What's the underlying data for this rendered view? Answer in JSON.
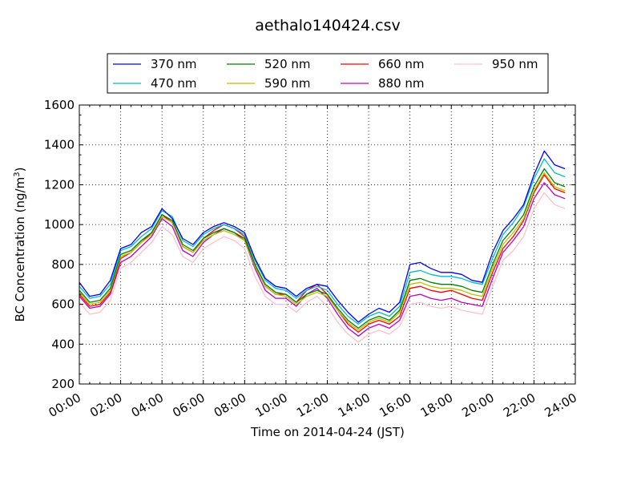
{
  "chart_data": {
    "type": "line",
    "title": "aethalo140424.csv",
    "xlabel": "Time on 2014-04-24 (JST)",
    "ylabel": "BC Concentration (ng/m",
    "ylabel_sup": "3",
    "ylabel_end": ")",
    "ylim": [
      200,
      1600
    ],
    "yticks": [
      200,
      400,
      600,
      800,
      1000,
      1200,
      1400,
      1600
    ],
    "xlim": [
      "00:00",
      "24:00"
    ],
    "xticks": [
      "00:00",
      "02:00",
      "04:00",
      "06:00",
      "08:00",
      "10:00",
      "12:00",
      "14:00",
      "16:00",
      "18:00",
      "20:00",
      "22:00",
      "24:00"
    ],
    "grid": true,
    "legend_position": "top",
    "x": [
      "00:00",
      "00:30",
      "01:00",
      "01:30",
      "02:00",
      "02:30",
      "03:00",
      "03:30",
      "04:00",
      "04:30",
      "05:00",
      "05:30",
      "06:00",
      "06:30",
      "07:00",
      "07:30",
      "08:00",
      "08:30",
      "09:00",
      "09:30",
      "10:00",
      "10:30",
      "11:00",
      "11:30",
      "12:00",
      "12:30",
      "13:00",
      "13:30",
      "14:00",
      "14:30",
      "15:00",
      "15:30",
      "16:00",
      "16:30",
      "17:00",
      "17:30",
      "18:00",
      "18:30",
      "19:00",
      "19:30",
      "20:00",
      "20:30",
      "21:00",
      "21:30",
      "22:00",
      "22:30",
      "23:00",
      "23:30"
    ],
    "series": [
      {
        "name": "370 nm",
        "color": "#0000ff",
        "values": [
          710,
          640,
          650,
          720,
          880,
          900,
          960,
          990,
          1080,
          1030,
          930,
          900,
          960,
          990,
          1010,
          990,
          960,
          830,
          730,
          690,
          680,
          640,
          680,
          700,
          690,
          620,
          560,
          510,
          550,
          580,
          560,
          610,
          800,
          810,
          780,
          760,
          760,
          750,
          720,
          710,
          860,
          970,
          1030,
          1100,
          1250,
          1370,
          1300,
          1280
        ]
      },
      {
        "name": "470 nm",
        "color": "#00bfbf",
        "values": [
          690,
          630,
          640,
          700,
          870,
          890,
          940,
          980,
          1070,
          1040,
          920,
          890,
          950,
          980,
          1000,
          980,
          950,
          820,
          720,
          680,
          670,
          630,
          670,
          690,
          670,
          600,
          540,
          500,
          540,
          560,
          540,
          590,
          760,
          770,
          750,
          740,
          740,
          730,
          710,
          700,
          830,
          950,
          1010,
          1090,
          1230,
          1330,
          1260,
          1240
        ]
      },
      {
        "name": "520 nm",
        "color": "#008000",
        "values": [
          670,
          610,
          620,
          680,
          850,
          870,
          920,
          960,
          1050,
          1020,
          900,
          870,
          930,
          960,
          980,
          960,
          930,
          800,
          700,
          660,
          650,
          610,
          650,
          670,
          650,
          580,
          520,
          480,
          520,
          540,
          520,
          570,
          720,
          730,
          710,
          700,
          700,
          690,
          670,
          660,
          800,
          920,
          980,
          1050,
          1190,
          1280,
          1210,
          1190
        ]
      },
      {
        "name": "590 nm",
        "color": "#bfbf00",
        "values": [
          660,
          600,
          610,
          670,
          840,
          860,
          910,
          950,
          1040,
          1010,
          890,
          860,
          920,
          950,
          970,
          950,
          920,
          790,
          690,
          650,
          640,
          600,
          640,
          660,
          640,
          570,
          510,
          470,
          510,
          530,
          510,
          560,
          700,
          710,
          690,
          680,
          680,
          670,
          650,
          640,
          780,
          900,
          960,
          1030,
          1170,
          1260,
          1190,
          1170
        ]
      },
      {
        "name": "660 nm",
        "color": "#ff0000",
        "values": [
          650,
          590,
          600,
          660,
          830,
          860,
          910,
          960,
          1050,
          1010,
          890,
          860,
          930,
          970,
          1000,
          980,
          940,
          800,
          690,
          650,
          650,
          610,
          670,
          700,
          650,
          570,
          500,
          460,
          500,
          520,
          500,
          540,
          680,
          690,
          670,
          660,
          670,
          650,
          630,
          620,
          760,
          880,
          940,
          1020,
          1160,
          1250,
          1180,
          1160
        ]
      },
      {
        "name": "880 nm",
        "color": "#bf00bf",
        "values": [
          640,
          580,
          590,
          650,
          810,
          840,
          890,
          940,
          1030,
          990,
          870,
          840,
          910,
          950,
          980,
          960,
          920,
          780,
          670,
          630,
          630,
          590,
          650,
          680,
          630,
          550,
          480,
          440,
          480,
          500,
          480,
          520,
          640,
          650,
          630,
          620,
          630,
          610,
          600,
          590,
          730,
          860,
          920,
          990,
          1130,
          1210,
          1150,
          1130
        ]
      },
      {
        "name": "950 nm",
        "color": "#ffc0cb",
        "values": [
          610,
          550,
          560,
          620,
          780,
          810,
          860,
          910,
          990,
          950,
          840,
          810,
          880,
          910,
          940,
          920,
          880,
          740,
          640,
          600,
          600,
          560,
          610,
          640,
          590,
          510,
          450,
          410,
          450,
          470,
          450,
          490,
          600,
          610,
          590,
          580,
          590,
          570,
          560,
          550,
          690,
          820,
          870,
          940,
          1080,
          1160,
          1100,
          1080
        ]
      }
    ]
  }
}
